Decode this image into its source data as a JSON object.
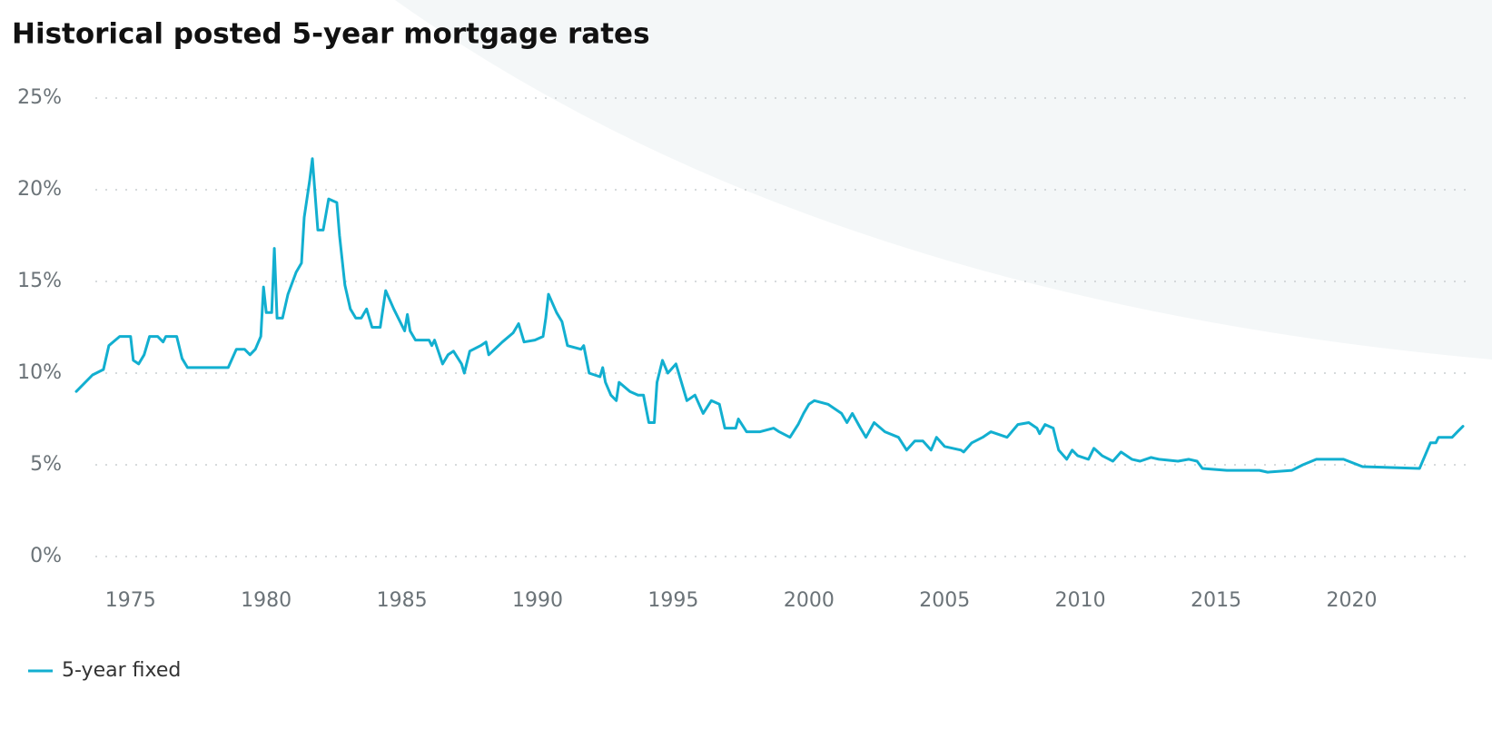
{
  "chart_data": {
    "type": "line",
    "title": "Historical posted 5-year mortgage rates",
    "x": [
      1973.0,
      1973.6,
      1974.0,
      1974.2,
      1974.6,
      1975.0,
      1975.1,
      1975.3,
      1975.5,
      1975.7,
      1976.0,
      1976.2,
      1976.3,
      1976.7,
      1976.9,
      1977.1,
      1978.6,
      1978.9,
      1979.2,
      1979.4,
      1979.6,
      1979.8,
      1979.9,
      1980.0,
      1980.2,
      1980.3,
      1980.4,
      1980.6,
      1980.8,
      1981.1,
      1981.3,
      1981.4,
      1981.6,
      1981.7,
      1981.9,
      1982.1,
      1982.3,
      1982.6,
      1982.7,
      1982.9,
      1983.1,
      1983.3,
      1983.5,
      1983.7,
      1983.9,
      1984.2,
      1984.4,
      1984.7,
      1985.1,
      1985.2,
      1985.3,
      1985.5,
      1986.0,
      1986.1,
      1986.2,
      1986.5,
      1986.7,
      1986.9,
      1987.2,
      1987.3,
      1987.5,
      1987.9,
      1988.1,
      1988.2,
      1988.7,
      1989.1,
      1989.3,
      1989.5,
      1989.9,
      1990.2,
      1990.3,
      1990.4,
      1990.7,
      1990.9,
      1991.1,
      1991.6,
      1991.7,
      1991.9,
      1992.3,
      1992.4,
      1992.5,
      1992.7,
      1992.9,
      1993.0,
      1993.4,
      1993.7,
      1993.9,
      1994.1,
      1994.3,
      1994.4,
      1994.6,
      1994.8,
      1995.1,
      1995.5,
      1995.8,
      1996.1,
      1996.4,
      1996.7,
      1996.9,
      1997.3,
      1997.4,
      1997.7,
      1998.2,
      1998.7,
      1998.9,
      1999.3,
      1999.6,
      1999.8,
      2000.0,
      2000.2,
      2000.7,
      2001.2,
      2001.4,
      2001.6,
      2001.9,
      2002.1,
      2002.4,
      2002.8,
      2003.3,
      2003.6,
      2003.9,
      2004.2,
      2004.5,
      2004.7,
      2005.0,
      2005.6,
      2005.7,
      2006.0,
      2006.4,
      2006.7,
      2007.3,
      2007.7,
      2008.1,
      2008.4,
      2008.5,
      2008.7,
      2009.0,
      2009.2,
      2009.5,
      2009.7,
      2009.9,
      2010.3,
      2010.5,
      2010.8,
      2011.2,
      2011.5,
      2011.9,
      2012.2,
      2012.6,
      2012.9,
      2013.6,
      2014.0,
      2014.3,
      2014.5,
      2015.4,
      2016.6,
      2016.9,
      2017.8,
      2018.2,
      2018.7,
      2019.7,
      2020.4,
      2022.5,
      2022.7,
      2022.9,
      2023.1,
      2023.2,
      2023.7,
      2023.9,
      2024.1
    ],
    "series": [
      {
        "name": "5-year fixed",
        "color": "#12afd0",
        "values": [
          9.0,
          9.9,
          10.2,
          11.5,
          12.0,
          12.0,
          10.7,
          10.5,
          11.0,
          12.0,
          12.0,
          11.7,
          12.0,
          12.0,
          10.8,
          10.3,
          10.3,
          11.3,
          11.3,
          11.0,
          11.3,
          12.0,
          14.7,
          13.3,
          13.3,
          16.8,
          13.0,
          13.0,
          14.3,
          15.5,
          16.0,
          18.5,
          20.5,
          21.7,
          17.8,
          17.8,
          19.5,
          19.3,
          17.5,
          14.8,
          13.5,
          13.0,
          13.0,
          13.5,
          12.5,
          12.5,
          14.5,
          13.5,
          12.3,
          13.2,
          12.3,
          11.8,
          11.8,
          11.5,
          11.8,
          10.5,
          11.0,
          11.2,
          10.5,
          10.0,
          11.2,
          11.5,
          11.7,
          11.0,
          11.7,
          12.2,
          12.7,
          11.7,
          11.8,
          12.0,
          13.0,
          14.3,
          13.3,
          12.8,
          11.5,
          11.3,
          11.5,
          10.0,
          9.8,
          10.3,
          9.5,
          8.8,
          8.5,
          9.5,
          9.0,
          8.8,
          8.8,
          7.3,
          7.3,
          9.5,
          10.7,
          10.0,
          10.5,
          8.5,
          8.8,
          7.8,
          8.5,
          8.3,
          7.0,
          7.0,
          7.5,
          6.8,
          6.8,
          7.0,
          6.8,
          6.5,
          7.2,
          7.8,
          8.3,
          8.5,
          8.3,
          7.8,
          7.3,
          7.8,
          7.0,
          6.5,
          7.3,
          6.8,
          6.5,
          5.8,
          6.3,
          6.3,
          5.8,
          6.5,
          6.0,
          5.8,
          5.7,
          6.2,
          6.5,
          6.8,
          6.5,
          7.2,
          7.3,
          7.0,
          6.7,
          7.2,
          7.0,
          5.8,
          5.3,
          5.8,
          5.5,
          5.3,
          5.9,
          5.5,
          5.2,
          5.7,
          5.3,
          5.2,
          5.4,
          5.3,
          5.2,
          5.3,
          5.2,
          4.8,
          4.7,
          4.7,
          4.6,
          4.7,
          5.0,
          5.3,
          5.3,
          4.9,
          4.8,
          5.5,
          6.2,
          6.2,
          6.5,
          6.5,
          6.8,
          7.1
        ]
      }
    ],
    "xlim": [
      1973.0,
      2024.2
    ],
    "xticks": [
      1975,
      1980,
      1985,
      1990,
      1995,
      2000,
      2005,
      2010,
      2015,
      2020
    ],
    "ylim": [
      0,
      25
    ],
    "yticks": [
      {
        "value": 0,
        "label": "0%"
      },
      {
        "value": 5,
        "label": "5%"
      },
      {
        "value": 10,
        "label": "10%"
      },
      {
        "value": 15,
        "label": "15%"
      },
      {
        "value": 20,
        "label": "20%"
      },
      {
        "value": 25,
        "label": "25%"
      }
    ],
    "grid": true
  }
}
